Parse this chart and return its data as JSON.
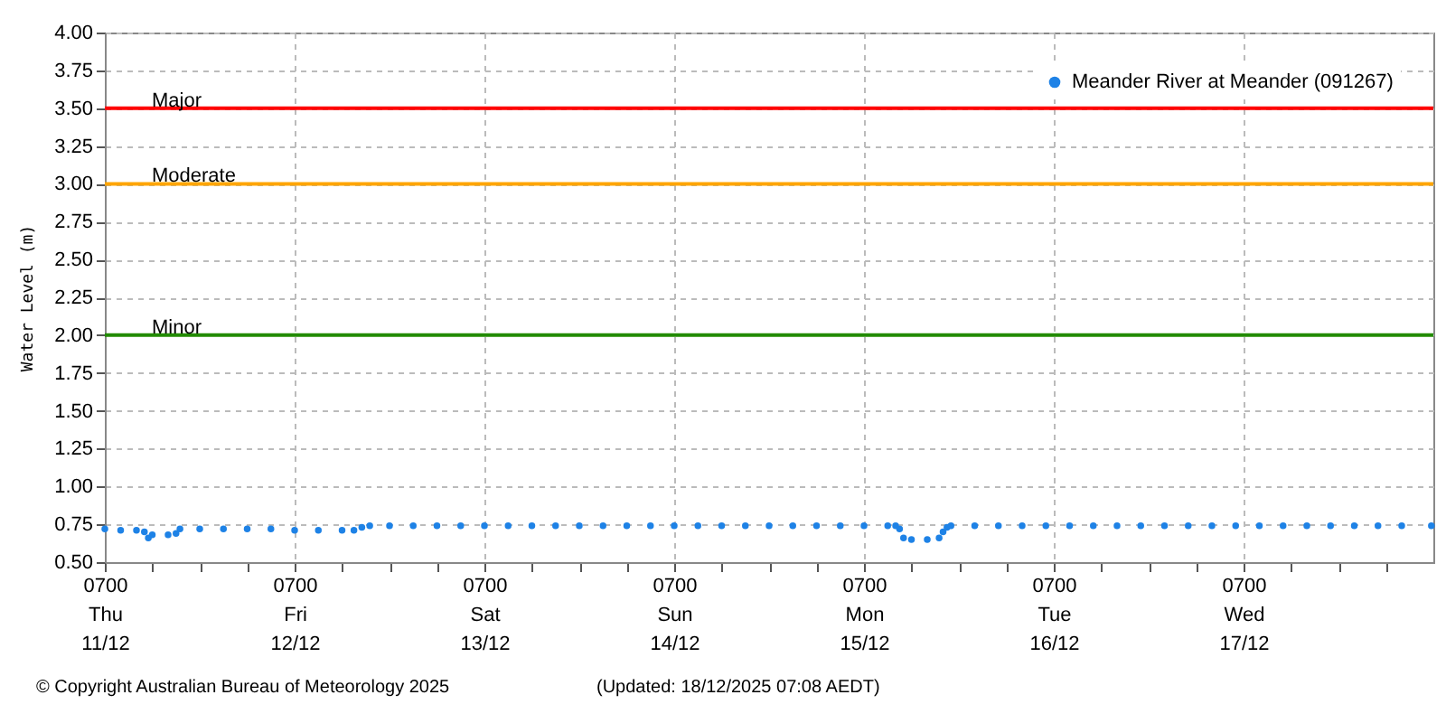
{
  "chart_data": {
    "type": "scatter",
    "ylabel": "Water Level (m)",
    "marker": "circle",
    "grid": true,
    "legend": "top right",
    "annotations": [
      "© Copyright Australian Bureau of Meteorology 2025",
      "(Updated: 18/12/2025 07:08 AEDT)"
    ],
    "xlim": [
      "2025-12-11T07:00",
      "2025-12-18T07:00"
    ],
    "xticks": [
      {
        "value": "2025-12-11T07:00",
        "label": "0700\nThu\n11/12"
      },
      {
        "value": "2025-12-11T13:00",
        "label": null
      },
      {
        "value": "2025-12-11T19:00",
        "label": null
      },
      {
        "value": "2025-12-12T01:00",
        "label": null
      },
      {
        "value": "2025-12-12T07:00",
        "label": "0700\nFri\n12/12"
      },
      {
        "value": "2025-12-12T13:00",
        "label": null
      },
      {
        "value": "2025-12-12T19:00",
        "label": null
      },
      {
        "value": "2025-12-13T01:00",
        "label": null
      },
      {
        "value": "2025-12-13T07:00",
        "label": "0700\nSat\n13/12"
      },
      {
        "value": "2025-12-13T13:00",
        "label": null
      },
      {
        "value": "2025-12-13T19:00",
        "label": null
      },
      {
        "value": "2025-12-14T01:00",
        "label": null
      },
      {
        "value": "2025-12-14T07:00",
        "label": "0700\nSun\n14/12"
      },
      {
        "value": "2025-12-14T13:00",
        "label": null
      },
      {
        "value": "2025-12-14T19:00",
        "label": null
      },
      {
        "value": "2025-12-15T01:00",
        "label": null
      },
      {
        "value": "2025-12-15T07:00",
        "label": "0700\nMon\n15/12"
      },
      {
        "value": "2025-12-15T13:00",
        "label": null
      },
      {
        "value": "2025-12-15T19:00",
        "label": null
      },
      {
        "value": "2025-12-16T01:00",
        "label": null
      },
      {
        "value": "2025-12-16T07:00",
        "label": "0700\nTue\n16/12"
      },
      {
        "value": "2025-12-16T13:00",
        "label": null
      },
      {
        "value": "2025-12-16T19:00",
        "label": null
      },
      {
        "value": "2025-12-17T01:00",
        "label": null
      },
      {
        "value": "2025-12-17T07:00",
        "label": "0700\nWed\n17/12"
      },
      {
        "value": "2025-12-17T13:00",
        "label": null
      },
      {
        "value": "2025-12-17T19:00",
        "label": null
      },
      {
        "value": "2025-12-18T01:00",
        "label": null
      }
    ],
    "ylim": [
      0.5,
      4.0
    ],
    "yticks": [
      {
        "value": 0.5,
        "label": "0.50"
      },
      {
        "value": 0.75,
        "label": "0.75"
      },
      {
        "value": 1.0,
        "label": "1.00"
      },
      {
        "value": 1.25,
        "label": "1.25"
      },
      {
        "value": 1.5,
        "label": "1.50"
      },
      {
        "value": 1.75,
        "label": "1.75"
      },
      {
        "value": 2.0,
        "label": "2.00"
      },
      {
        "value": 2.25,
        "label": "2.25"
      },
      {
        "value": 2.5,
        "label": "2.50"
      },
      {
        "value": 2.75,
        "label": "2.75"
      },
      {
        "value": 3.0,
        "label": "3.00"
      },
      {
        "value": 3.25,
        "label": "3.25"
      },
      {
        "value": 3.5,
        "label": "3.50"
      },
      {
        "value": 3.75,
        "label": "3.75"
      },
      {
        "value": 4.0,
        "label": "4.00"
      }
    ],
    "ref_lines": [
      {
        "axis": "y",
        "value": 3.5,
        "label": "Major",
        "color": "#ff0000"
      },
      {
        "axis": "y",
        "value": 3.0,
        "label": "Moderate",
        "color": "#ffa500"
      },
      {
        "axis": "y",
        "value": 2.0,
        "label": "Minor",
        "color": "#228b00"
      }
    ],
    "series": [
      {
        "name": "Meander River at Meander (091267)",
        "color": "#1e82e6",
        "x": [
          "2025-12-11T07:00",
          "2025-12-11T09:00",
          "2025-12-11T11:00",
          "2025-12-11T12:00",
          "2025-12-11T12:30",
          "2025-12-11T13:00",
          "2025-12-11T15:00",
          "2025-12-11T16:00",
          "2025-12-11T16:30",
          "2025-12-11T19:00",
          "2025-12-11T22:00",
          "2025-12-12T01:00",
          "2025-12-12T04:00",
          "2025-12-12T07:00",
          "2025-12-12T10:00",
          "2025-12-12T13:00",
          "2025-12-12T14:30",
          "2025-12-12T15:30",
          "2025-12-12T16:30",
          "2025-12-12T19:00",
          "2025-12-12T22:00",
          "2025-12-13T01:00",
          "2025-12-13T04:00",
          "2025-12-13T07:00",
          "2025-12-13T10:00",
          "2025-12-13T13:00",
          "2025-12-13T16:00",
          "2025-12-13T19:00",
          "2025-12-13T22:00",
          "2025-12-14T01:00",
          "2025-12-14T04:00",
          "2025-12-14T07:00",
          "2025-12-14T10:00",
          "2025-12-14T13:00",
          "2025-12-14T16:00",
          "2025-12-14T19:00",
          "2025-12-14T22:00",
          "2025-12-15T01:00",
          "2025-12-15T04:00",
          "2025-12-15T07:00",
          "2025-12-15T10:00",
          "2025-12-15T11:00",
          "2025-12-15T11:30",
          "2025-12-15T12:00",
          "2025-12-15T13:00",
          "2025-12-15T15:00",
          "2025-12-15T16:30",
          "2025-12-15T17:00",
          "2025-12-15T17:30",
          "2025-12-15T18:00",
          "2025-12-15T21:00",
          "2025-12-16T00:00",
          "2025-12-16T03:00",
          "2025-12-16T06:00",
          "2025-12-16T09:00",
          "2025-12-16T12:00",
          "2025-12-16T15:00",
          "2025-12-16T18:00",
          "2025-12-16T21:00",
          "2025-12-17T00:00",
          "2025-12-17T03:00",
          "2025-12-17T06:00",
          "2025-12-17T09:00",
          "2025-12-17T12:00",
          "2025-12-17T15:00",
          "2025-12-17T18:00",
          "2025-12-17T21:00",
          "2025-12-18T00:00",
          "2025-12-18T03:00",
          "2025-12-18T06:45"
        ],
        "values": [
          0.72,
          0.71,
          0.71,
          0.7,
          0.66,
          0.68,
          0.68,
          0.69,
          0.72,
          0.72,
          0.72,
          0.72,
          0.72,
          0.71,
          0.71,
          0.71,
          0.71,
          0.73,
          0.74,
          0.74,
          0.74,
          0.74,
          0.74,
          0.74,
          0.74,
          0.74,
          0.74,
          0.74,
          0.74,
          0.74,
          0.74,
          0.74,
          0.74,
          0.74,
          0.74,
          0.74,
          0.74,
          0.74,
          0.74,
          0.74,
          0.74,
          0.74,
          0.72,
          0.66,
          0.65,
          0.65,
          0.66,
          0.7,
          0.73,
          0.74,
          0.74,
          0.74,
          0.74,
          0.74,
          0.74,
          0.74,
          0.74,
          0.74,
          0.74,
          0.74,
          0.74,
          0.74,
          0.74,
          0.74,
          0.74,
          0.74,
          0.74,
          0.74,
          0.74,
          0.74
        ]
      }
    ]
  }
}
